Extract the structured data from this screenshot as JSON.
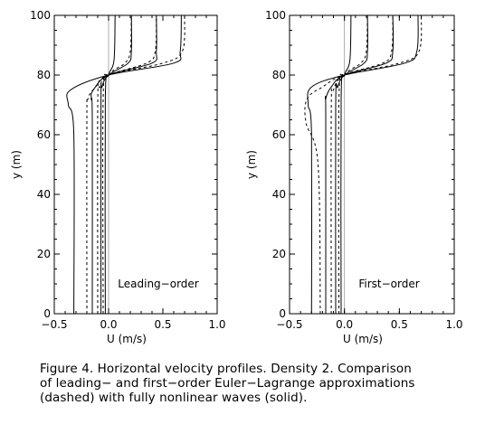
{
  "chart_data": [
    {
      "type": "line",
      "xlabel": "U (m/s)",
      "ylabel": "y (m)",
      "xlim": [
        -0.5,
        1.0
      ],
      "ylim": [
        0,
        100
      ],
      "xticks": [
        "−0.5",
        "0.0",
        "0.5",
        "1.0"
      ],
      "yticks": [
        "0",
        "20",
        "40",
        "60",
        "80",
        "100"
      ],
      "annotation": "Leading−order",
      "reference_line_x": 0.0,
      "series": [
        {
          "style": "solid",
          "points": [
            [
              -0.32,
              0
            ],
            [
              -0.32,
              60
            ],
            [
              -0.37,
              70
            ],
            [
              -0.35,
              75
            ],
            [
              0.0,
              80
            ],
            [
              0.6,
              84
            ],
            [
              0.66,
              88
            ],
            [
              0.67,
              100
            ]
          ]
        },
        {
          "style": "solid",
          "points": [
            [
              -0.15,
              0
            ],
            [
              -0.15,
              65
            ],
            [
              -0.16,
              72
            ],
            [
              -0.14,
              75
            ],
            [
              0.0,
              80
            ],
            [
              0.4,
              84
            ],
            [
              0.44,
              88
            ],
            [
              0.44,
              100
            ]
          ]
        },
        {
          "style": "solid",
          "points": [
            [
              -0.07,
              0
            ],
            [
              -0.07,
              70
            ],
            [
              -0.06,
              76
            ],
            [
              0.0,
              80
            ],
            [
              0.18,
              84
            ],
            [
              0.21,
              88
            ],
            [
              0.21,
              100
            ]
          ]
        },
        {
          "style": "solid",
          "points": [
            [
              -0.03,
              0
            ],
            [
              -0.03,
              72
            ],
            [
              0.0,
              80
            ],
            [
              0.05,
              85
            ],
            [
              0.06,
              100
            ]
          ]
        },
        {
          "style": "dashed",
          "points": [
            [
              -0.2,
              0
            ],
            [
              -0.2,
              65
            ],
            [
              -0.19,
              72
            ],
            [
              -0.12,
              76
            ],
            [
              0.0,
              80
            ],
            [
              0.5,
              84
            ],
            [
              0.68,
              88
            ],
            [
              0.7,
              100
            ]
          ]
        },
        {
          "style": "dashed",
          "points": [
            [
              -0.1,
              0
            ],
            [
              -0.1,
              70
            ],
            [
              -0.08,
              76
            ],
            [
              0.0,
              80
            ],
            [
              0.35,
              84
            ],
            [
              0.43,
              88
            ],
            [
              0.44,
              100
            ]
          ]
        },
        {
          "style": "dashed",
          "points": [
            [
              -0.05,
              0
            ],
            [
              -0.05,
              72
            ],
            [
              0.0,
              80
            ],
            [
              0.15,
              84
            ],
            [
              0.2,
              88
            ],
            [
              0.21,
              100
            ]
          ]
        }
      ]
    },
    {
      "type": "line",
      "xlabel": "U (m/s)",
      "ylabel": "y (m)",
      "xlim": [
        -0.5,
        1.0
      ],
      "ylim": [
        0,
        100
      ],
      "xticks": [
        "−0.5",
        "0.0",
        "0.5",
        "1.0"
      ],
      "yticks": [
        "0",
        "20",
        "40",
        "60",
        "80",
        "100"
      ],
      "annotation": "First−order",
      "reference_line_x": 0.0,
      "series": [
        {
          "style": "solid",
          "points": [
            [
              -0.3,
              0
            ],
            [
              -0.3,
              60
            ],
            [
              -0.33,
              70
            ],
            [
              -0.3,
              76
            ],
            [
              0.0,
              80
            ],
            [
              0.55,
              84
            ],
            [
              0.66,
              88
            ],
            [
              0.67,
              100
            ]
          ]
        },
        {
          "style": "solid",
          "points": [
            [
              -0.17,
              0
            ],
            [
              -0.17,
              66
            ],
            [
              -0.17,
              72
            ],
            [
              -0.12,
              76
            ],
            [
              0.0,
              80
            ],
            [
              0.38,
              84
            ],
            [
              0.44,
              88
            ],
            [
              0.44,
              100
            ]
          ]
        },
        {
          "style": "solid",
          "points": [
            [
              -0.08,
              0
            ],
            [
              -0.08,
              70
            ],
            [
              -0.06,
              76
            ],
            [
              0.0,
              80
            ],
            [
              0.18,
              84
            ],
            [
              0.21,
              88
            ],
            [
              0.21,
              100
            ]
          ]
        },
        {
          "style": "solid",
          "points": [
            [
              -0.03,
              0
            ],
            [
              -0.03,
              72
            ],
            [
              0.0,
              80
            ],
            [
              0.05,
              85
            ],
            [
              0.06,
              100
            ]
          ]
        },
        {
          "style": "dashed",
          "points": [
            [
              -0.22,
              0
            ],
            [
              -0.24,
              50
            ],
            [
              -0.35,
              64
            ],
            [
              -0.34,
              72
            ],
            [
              -0.2,
              76
            ],
            [
              0.0,
              80
            ],
            [
              0.5,
              84
            ],
            [
              0.68,
              88
            ],
            [
              0.7,
              100
            ]
          ]
        },
        {
          "style": "dashed",
          "points": [
            [
              -0.12,
              0
            ],
            [
              -0.12,
              68
            ],
            [
              -0.1,
              75
            ],
            [
              0.0,
              80
            ],
            [
              0.35,
              84
            ],
            [
              0.43,
              88
            ],
            [
              0.44,
              100
            ]
          ]
        },
        {
          "style": "dashed",
          "points": [
            [
              -0.05,
              0
            ],
            [
              -0.05,
              72
            ],
            [
              0.0,
              80
            ],
            [
              0.15,
              84
            ],
            [
              0.2,
              88
            ],
            [
              0.21,
              100
            ]
          ]
        }
      ]
    }
  ],
  "caption": [
    "Figure 4. Horizontal velocity profiles. Density 2. Comparison",
    "of leading− and first−order Euler−Lagrange approximations",
    "(dashed) with fully nonlinear waves (solid)."
  ]
}
